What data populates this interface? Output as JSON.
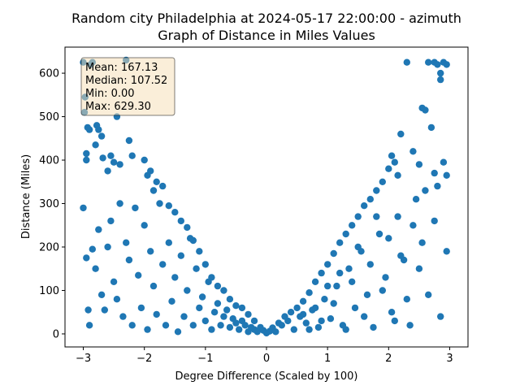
{
  "chart_data": {
    "type": "scatter",
    "title": "Random city Philadelphia at 2024-05-17 22:00:00  - azimuth",
    "subtitle": "Graph of Distance in Miles Values",
    "xlabel": "Degree Difference (Scaled by 100)",
    "ylabel": "Distance (Miles)",
    "xlim": [
      -3.3,
      3.3
    ],
    "ylim": [
      -30,
      660
    ],
    "xticks": [
      -3,
      -2,
      -1,
      0,
      1,
      2,
      3
    ],
    "yticks": [
      0,
      100,
      200,
      300,
      400,
      500,
      600
    ],
    "grid": false,
    "marker_color": "#1f77b4",
    "stats": {
      "mean": "Mean: 167.13",
      "median": "Median: 107.52",
      "min": "Min: 0.00",
      "max": "Max: 629.30"
    },
    "points": [
      [
        -3.0,
        625
      ],
      [
        -2.98,
        510
      ],
      [
        -2.97,
        545
      ],
      [
        -2.95,
        415
      ],
      [
        -2.95,
        400
      ],
      [
        -2.93,
        475
      ],
      [
        -2.9,
        470
      ],
      [
        -2.88,
        620
      ],
      [
        -2.85,
        625
      ],
      [
        -2.8,
        435
      ],
      [
        -2.78,
        480
      ],
      [
        -2.75,
        470
      ],
      [
        -2.7,
        455
      ],
      [
        -2.68,
        405
      ],
      [
        -2.6,
        375
      ],
      [
        -2.55,
        410
      ],
      [
        -2.5,
        395
      ],
      [
        -2.45,
        500
      ],
      [
        -2.4,
        390
      ],
      [
        -2.3,
        630
      ],
      [
        -2.25,
        445
      ],
      [
        -2.2,
        410
      ],
      [
        -2.0,
        400
      ],
      [
        -1.95,
        365
      ],
      [
        -1.9,
        375
      ],
      [
        -1.85,
        330
      ],
      [
        -1.8,
        350
      ],
      [
        -1.7,
        340
      ],
      [
        -1.6,
        295
      ],
      [
        -1.5,
        280
      ],
      [
        -1.4,
        260
      ],
      [
        -1.3,
        245
      ],
      [
        -1.2,
        215
      ],
      [
        -1.1,
        190
      ],
      [
        -1.0,
        160
      ],
      [
        -0.9,
        130
      ],
      [
        -0.8,
        110
      ],
      [
        -0.7,
        100
      ],
      [
        -0.6,
        80
      ],
      [
        -0.5,
        65
      ],
      [
        -0.4,
        60
      ],
      [
        -0.3,
        45
      ],
      [
        -0.2,
        30
      ],
      [
        -0.1,
        15
      ],
      [
        -0.05,
        8
      ],
      [
        0.0,
        2
      ],
      [
        0.05,
        6
      ],
      [
        0.1,
        14
      ],
      [
        0.2,
        25
      ],
      [
        0.3,
        40
      ],
      [
        0.4,
        50
      ],
      [
        0.5,
        60
      ],
      [
        0.6,
        75
      ],
      [
        0.7,
        95
      ],
      [
        0.8,
        120
      ],
      [
        0.9,
        140
      ],
      [
        1.0,
        160
      ],
      [
        1.1,
        185
      ],
      [
        1.2,
        210
      ],
      [
        1.3,
        230
      ],
      [
        1.4,
        250
      ],
      [
        1.5,
        270
      ],
      [
        1.6,
        295
      ],
      [
        1.7,
        310
      ],
      [
        1.8,
        330
      ],
      [
        1.9,
        350
      ],
      [
        2.0,
        380
      ],
      [
        2.05,
        410
      ],
      [
        2.1,
        395
      ],
      [
        2.15,
        365
      ],
      [
        2.2,
        460
      ],
      [
        2.3,
        625
      ],
      [
        2.4,
        420
      ],
      [
        2.5,
        390
      ],
      [
        2.55,
        520
      ],
      [
        2.6,
        515
      ],
      [
        2.65,
        625
      ],
      [
        2.7,
        475
      ],
      [
        2.75,
        625
      ],
      [
        2.8,
        620
      ],
      [
        2.85,
        600
      ],
      [
        2.9,
        625
      ],
      [
        2.95,
        620
      ],
      [
        2.85,
        585
      ],
      [
        2.9,
        395
      ],
      [
        2.95,
        365
      ],
      [
        2.8,
        340
      ],
      [
        2.75,
        370
      ],
      [
        -3.0,
        290
      ],
      [
        -2.95,
        175
      ],
      [
        -2.92,
        55
      ],
      [
        -2.9,
        20
      ],
      [
        -2.85,
        195
      ],
      [
        -2.8,
        150
      ],
      [
        -2.75,
        240
      ],
      [
        -2.7,
        90
      ],
      [
        -2.65,
        55
      ],
      [
        -2.6,
        200
      ],
      [
        -2.55,
        260
      ],
      [
        -2.5,
        120
      ],
      [
        -2.45,
        80
      ],
      [
        -2.4,
        300
      ],
      [
        -2.35,
        40
      ],
      [
        -2.3,
        210
      ],
      [
        -2.25,
        170
      ],
      [
        -2.2,
        20
      ],
      [
        -2.15,
        290
      ],
      [
        -2.1,
        135
      ],
      [
        -2.05,
        60
      ],
      [
        -2.0,
        250
      ],
      [
        -1.95,
        10
      ],
      [
        -1.9,
        190
      ],
      [
        -1.85,
        110
      ],
      [
        -1.8,
        45
      ],
      [
        -1.75,
        300
      ],
      [
        -1.7,
        160
      ],
      [
        -1.65,
        20
      ],
      [
        -1.6,
        210
      ],
      [
        -1.55,
        75
      ],
      [
        -1.5,
        130
      ],
      [
        -1.45,
        5
      ],
      [
        -1.4,
        180
      ],
      [
        -1.35,
        40
      ],
      [
        -1.3,
        100
      ],
      [
        -1.25,
        220
      ],
      [
        -1.2,
        20
      ],
      [
        -1.15,
        150
      ],
      [
        -1.1,
        60
      ],
      [
        -1.05,
        85
      ],
      [
        -1.0,
        30
      ],
      [
        -0.95,
        120
      ],
      [
        -0.9,
        10
      ],
      [
        -0.85,
        50
      ],
      [
        -0.8,
        70
      ],
      [
        -0.75,
        20
      ],
      [
        -0.7,
        40
      ],
      [
        -0.65,
        55
      ],
      [
        -0.6,
        15
      ],
      [
        -0.55,
        35
      ],
      [
        -0.5,
        25
      ],
      [
        -0.45,
        10
      ],
      [
        -0.4,
        30
      ],
      [
        -0.35,
        20
      ],
      [
        -0.3,
        5
      ],
      [
        -0.25,
        15
      ],
      [
        -0.2,
        10
      ],
      [
        -0.15,
        5
      ],
      [
        0.15,
        5
      ],
      [
        0.25,
        20
      ],
      [
        0.35,
        30
      ],
      [
        0.45,
        10
      ],
      [
        0.55,
        40
      ],
      [
        0.65,
        25
      ],
      [
        0.75,
        55
      ],
      [
        0.85,
        15
      ],
      [
        0.95,
        80
      ],
      [
        1.05,
        35
      ],
      [
        1.15,
        110
      ],
      [
        1.25,
        20
      ],
      [
        1.35,
        150
      ],
      [
        1.45,
        60
      ],
      [
        1.55,
        190
      ],
      [
        1.65,
        90
      ],
      [
        1.75,
        15
      ],
      [
        1.85,
        230
      ],
      [
        1.95,
        130
      ],
      [
        2.05,
        50
      ],
      [
        2.15,
        270
      ],
      [
        2.25,
        170
      ],
      [
        2.35,
        20
      ],
      [
        2.45,
        310
      ],
      [
        2.55,
        210
      ],
      [
        2.65,
        90
      ],
      [
        2.75,
        260
      ],
      [
        2.85,
        40
      ],
      [
        2.95,
        190
      ],
      [
        2.6,
        330
      ],
      [
        2.5,
        150
      ],
      [
        2.4,
        250
      ],
      [
        2.3,
        80
      ],
      [
        2.2,
        180
      ],
      [
        2.1,
        30
      ],
      [
        2.0,
        220
      ],
      [
        1.9,
        100
      ],
      [
        1.8,
        270
      ],
      [
        1.7,
        160
      ],
      [
        1.6,
        40
      ],
      [
        1.5,
        200
      ],
      [
        1.4,
        120
      ],
      [
        1.3,
        10
      ],
      [
        1.2,
        140
      ],
      [
        1.1,
        70
      ],
      [
        1.0,
        110
      ],
      [
        0.9,
        30
      ],
      [
        0.8,
        60
      ],
      [
        0.7,
        10
      ],
      [
        0.6,
        45
      ]
    ]
  }
}
